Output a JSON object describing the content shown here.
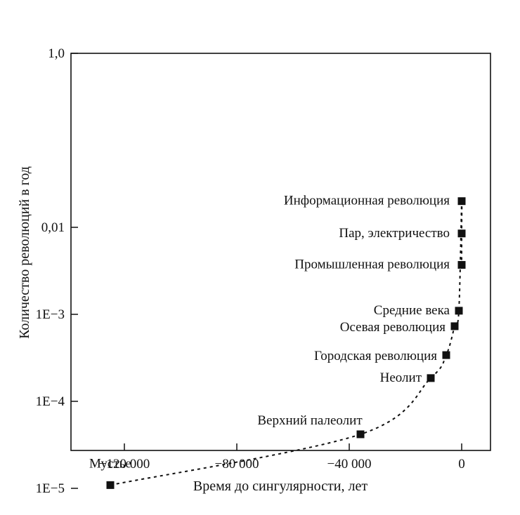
{
  "chart_data": {
    "type": "scatter",
    "title": "",
    "xlabel": "Время до сингулярности, лет",
    "ylabel": "Количество революций в год",
    "x_ticks": [
      {
        "value": -120000,
        "label": "−120 000"
      },
      {
        "value": -80000,
        "label": "−80 000"
      },
      {
        "value": -40000,
        "label": "−40 000"
      },
      {
        "value": 0,
        "label": "0"
      }
    ],
    "y_scale": "log",
    "y_ticks": [
      {
        "value": 1,
        "label": "1,0"
      },
      {
        "value": 0.01,
        "label": "0,01"
      },
      {
        "value": 0.001,
        "label": "1E−3"
      },
      {
        "value": 0.0001,
        "label": "1E−4"
      },
      {
        "value": 1e-05,
        "label": "1E−5"
      }
    ],
    "xlim": [
      -140000,
      10000
    ],
    "grid": false,
    "trend_line": "dashed",
    "series": [
      {
        "points": [
          {
            "label": "Информационная революция",
            "x": 0,
            "y": 0.02
          },
          {
            "label": "Пар, электричество",
            "x": 0,
            "y": 0.0085
          },
          {
            "label": "Промышленная революция",
            "x": 0,
            "y": 0.0037
          },
          {
            "label": "Средние века",
            "x": -1000,
            "y": 0.0011
          },
          {
            "label": "Осевая революция",
            "x": -2500,
            "y": 0.00073
          },
          {
            "label": "Городская революция",
            "x": -5500,
            "y": 0.00034
          },
          {
            "label": "Неолит",
            "x": -11000,
            "y": 0.000185
          },
          {
            "label": "Верхний палеолит",
            "x": -36000,
            "y": 4.18e-05
          },
          {
            "label": "Мустье",
            "x": -125000,
            "y": 1.09e-05
          }
        ]
      }
    ]
  }
}
